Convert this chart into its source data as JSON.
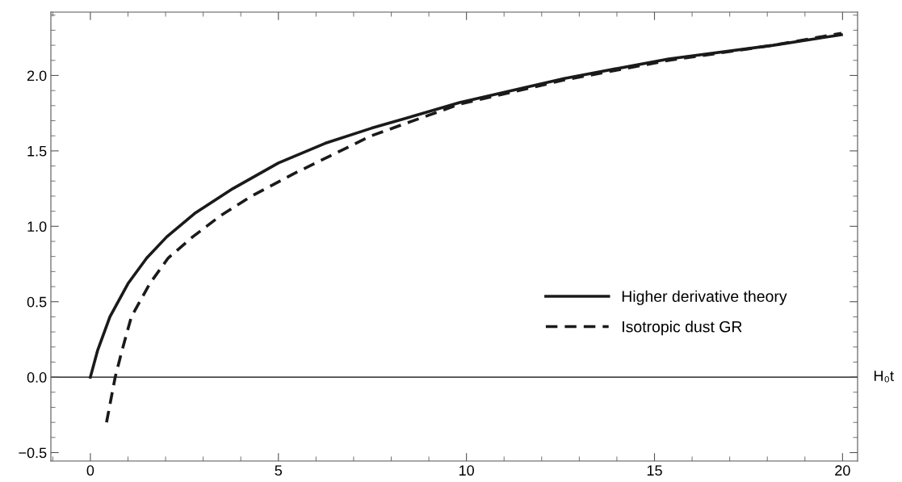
{
  "chart_data": {
    "type": "line",
    "xlabel": "H₀t",
    "xlim": [
      -1.05,
      20.4
    ],
    "ylim": [
      -0.556,
      2.42
    ],
    "xticks": [
      0,
      5,
      10,
      15,
      20
    ],
    "yticks": [
      {
        "value": -0.5,
        "label": "−0.5"
      },
      {
        "value": 0,
        "label": "0.0"
      },
      {
        "value": 0.5,
        "label": "0.5"
      },
      {
        "value": 1,
        "label": "1.0"
      },
      {
        "value": 1.5,
        "label": "1.5"
      },
      {
        "value": 2,
        "label": "2.0"
      }
    ],
    "ref_lines": [
      {
        "axis": "y",
        "value": 0,
        "color": "#000000",
        "line_style": "solid"
      }
    ],
    "grid": false,
    "legend": "right",
    "series": [
      {
        "name": "Higher derivative theory",
        "color": "#1a1a1a",
        "line_style": "solid",
        "x": [
          0,
          0.19,
          0.52,
          1.0,
          1.5,
          2.03,
          2.8,
          3.79,
          5.0,
          6.24,
          7.47,
          9.82,
          12.6,
          15.38,
          18.15,
          19.97
        ],
        "values": [
          0,
          0.175,
          0.4,
          0.62,
          0.79,
          0.93,
          1.09,
          1.25,
          1.42,
          1.55,
          1.65,
          1.82,
          1.98,
          2.11,
          2.2,
          2.27
        ]
      },
      {
        "name": "Isotropic dust GR",
        "color": "#1a1a1a",
        "line_style": "dashed",
        "x": [
          0.43,
          0.66,
          0.84,
          1.09,
          1.58,
          2.07,
          2.72,
          3.46,
          4.28,
          5.42,
          7.47,
          9.82,
          12.6,
          15.38,
          18.15,
          19.97
        ],
        "values": [
          -0.3,
          0,
          0.175,
          0.4,
          0.62,
          0.79,
          0.93,
          1.07,
          1.2,
          1.35,
          1.6,
          1.81,
          1.97,
          2.1,
          2.2,
          2.28
        ]
      }
    ]
  }
}
